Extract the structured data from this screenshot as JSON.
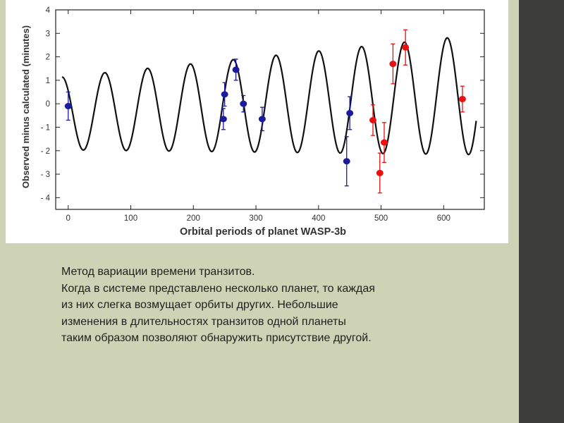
{
  "colors": {
    "background": "#cdd3b4",
    "sidebar": "#3c3c3a",
    "panel": "#ffffff",
    "curve": "#111111",
    "series_blue": "#1a1a9a",
    "series_red": "#e81010"
  },
  "chart_data": {
    "type": "scatter",
    "title": "",
    "xlabel": "Orbital periods of planet WASP-3b",
    "ylabel": "Observed minus calculated (minutes)",
    "xlim": [
      -20,
      665
    ],
    "ylim": [
      -4.5,
      4
    ],
    "xticks": [
      0,
      100,
      200,
      300,
      400,
      500,
      600
    ],
    "yticks": [
      -4,
      -3,
      -2,
      -1,
      0,
      1,
      2,
      3,
      4
    ],
    "grid": false,
    "legend": "none",
    "model_curve": {
      "x_start": -10,
      "x_end": 652,
      "period_orbits": 68.4,
      "first_peak_orbit": -10,
      "amplitude_start": 1.55,
      "amplitude_end": 2.55,
      "offset": -0.4,
      "drift_per_orbit": 0.0012
    },
    "series": [
      {
        "color": "#1a1a9a",
        "points": [
          {
            "x": 0,
            "y": -0.1,
            "err": 0.6
          },
          {
            "x": 248,
            "y": -0.65,
            "err": 0.45
          },
          {
            "x": 250,
            "y": 0.4,
            "err": 0.5
          },
          {
            "x": 268,
            "y": 1.45,
            "err": 0.45
          },
          {
            "x": 280,
            "y": 0.0,
            "err": 0.35
          },
          {
            "x": 310,
            "y": -0.65,
            "err": 0.5
          },
          {
            "x": 445,
            "y": -2.45,
            "err": 1.05
          },
          {
            "x": 450,
            "y": -0.4,
            "err": 0.7
          }
        ]
      },
      {
        "color": "#e81010",
        "points": [
          {
            "x": 487,
            "y": -0.7,
            "err": 0.65
          },
          {
            "x": 498,
            "y": -2.95,
            "err": 0.85
          },
          {
            "x": 505,
            "y": -1.65,
            "err": 0.85
          },
          {
            "x": 519,
            "y": 1.7,
            "err": 0.85
          },
          {
            "x": 539,
            "y": 2.4,
            "err": 0.75
          },
          {
            "x": 630,
            "y": 0.2,
            "err": 0.55
          }
        ]
      }
    ]
  },
  "caption": {
    "lines": [
      "Метод вариации времени транзитов.",
      "Когда в системе представлено несколько планет, то каждая",
      "из них слегка возмущает орбиты других. Небольшие",
      "изменения в длительностях транзитов одной планеты",
      "таким образом позволяют обнаружить присутствие другой."
    ]
  }
}
